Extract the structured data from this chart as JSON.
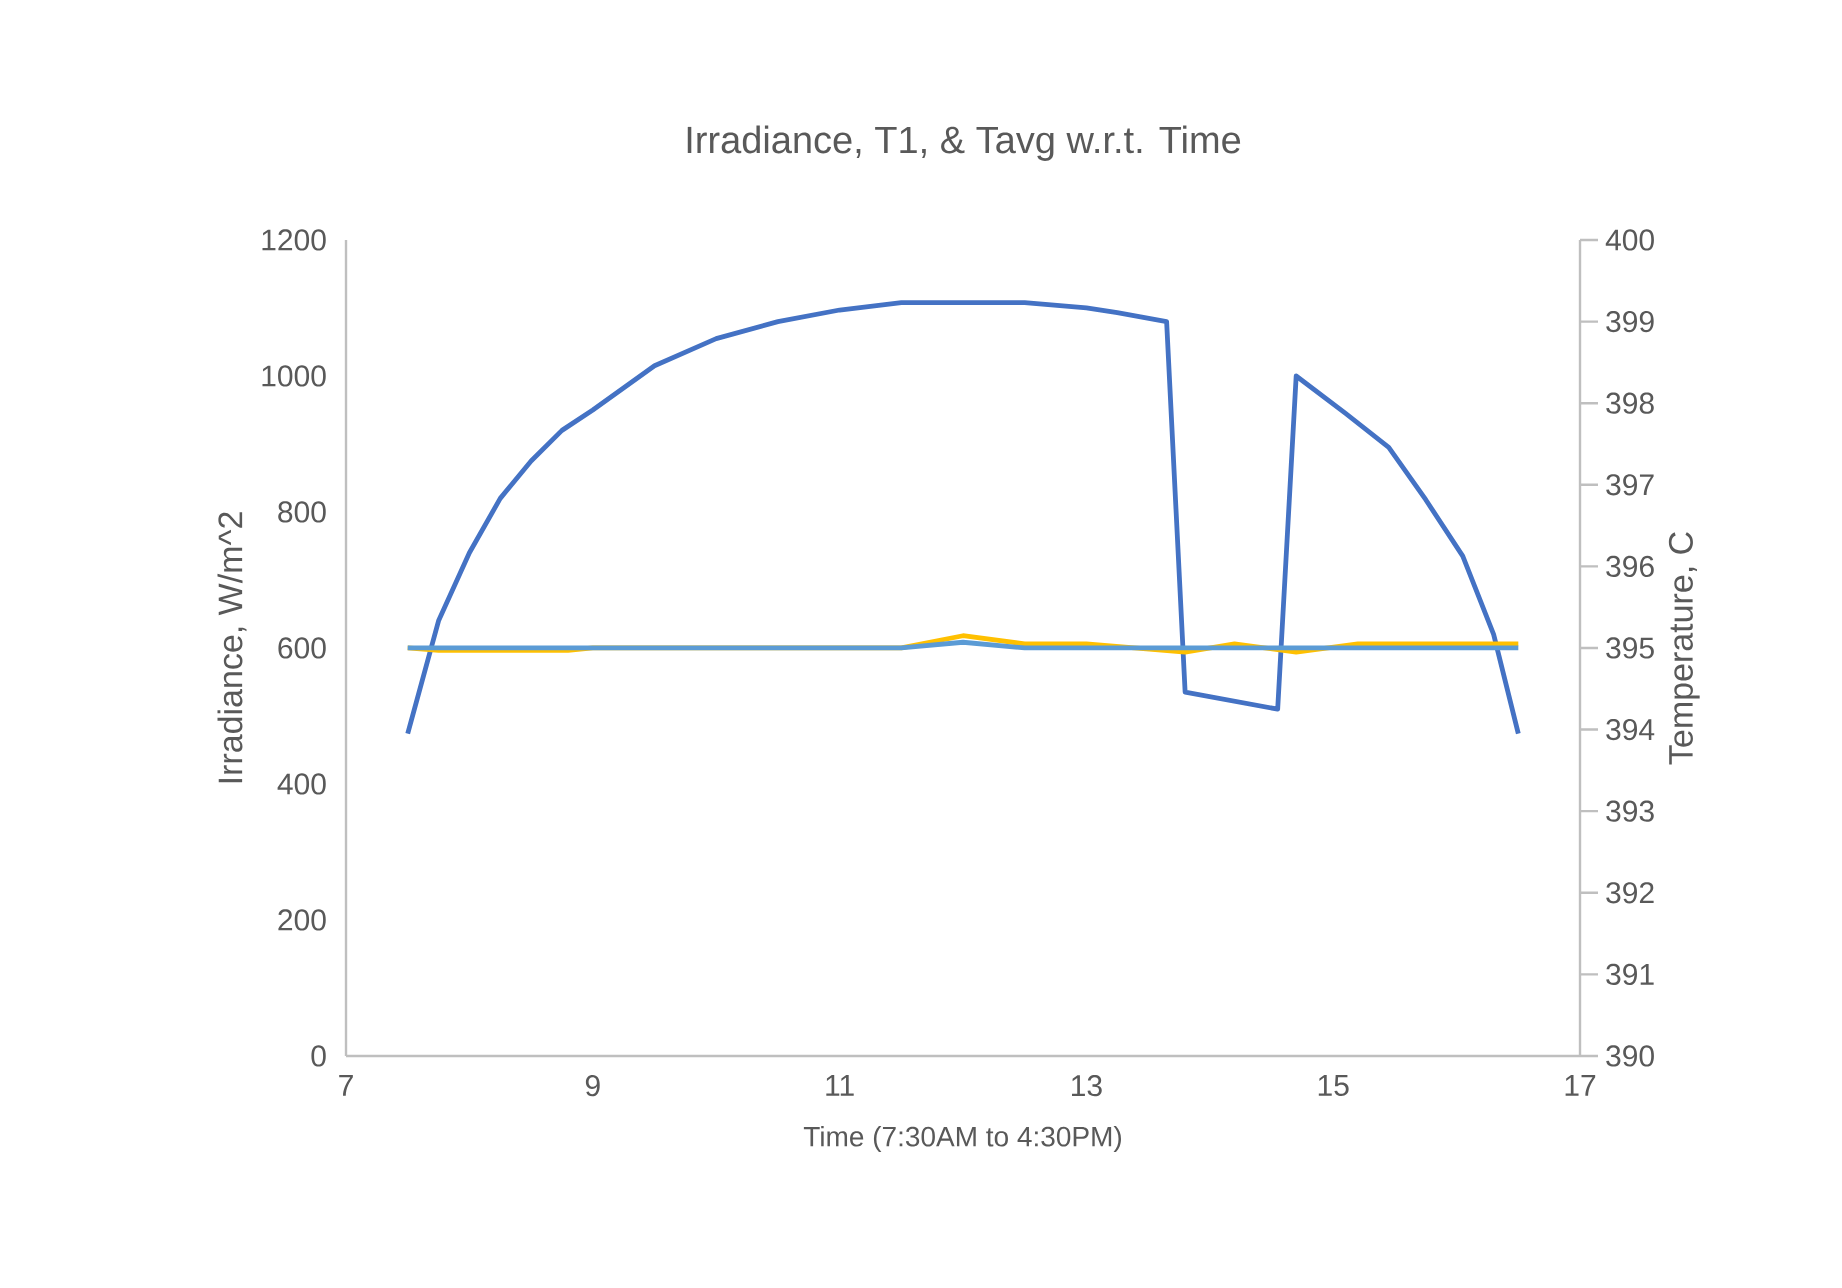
{
  "chart_data": {
    "type": "line",
    "title": "Irradiance, T1, & Tavg w.r.t. Time",
    "xlabel": "Time (7:30AM to 4:30PM)",
    "ylabel": "Irradiance, W/m^2",
    "y2label": "Temperature, C",
    "xlim": [
      7,
      17
    ],
    "xticks": [
      7,
      9,
      11,
      13,
      15,
      17
    ],
    "ylim": [
      0,
      1200
    ],
    "yticks": [
      0,
      200,
      400,
      600,
      800,
      1000,
      1200
    ],
    "y2lim": [
      390,
      400
    ],
    "y2ticks": [
      390,
      391,
      392,
      393,
      394,
      395,
      396,
      397,
      398,
      399,
      400
    ],
    "marker": "none",
    "series": [
      {
        "color": "#4472c4",
        "x": [
          7.5,
          7.75,
          8.0,
          8.25,
          8.5,
          8.75,
          9.0,
          9.5,
          10.0,
          10.5,
          11.0,
          11.5,
          12.0,
          12.5,
          13.0,
          13.25,
          13.65,
          13.8,
          14.55,
          14.7,
          15.1,
          15.45,
          15.75,
          16.05,
          16.3,
          16.5
        ],
        "values": [
          474,
          640,
          740,
          820,
          875,
          920,
          950,
          1015,
          1055,
          1080,
          1097,
          1108,
          1108,
          1108,
          1100,
          1093,
          1080,
          535,
          510,
          1000,
          945,
          895,
          818,
          735,
          620,
          474
        ]
      },
      {
        "color": "#ffc000",
        "axis": "y2",
        "x": [
          7.5,
          7.75,
          8.8,
          9.0,
          11.5,
          12.0,
          12.5,
          13.0,
          13.8,
          14.2,
          14.7,
          15.2,
          16.5
        ],
        "values": [
          395.0,
          394.97,
          394.97,
          395.0,
          395.0,
          395.15,
          395.05,
          395.05,
          394.95,
          395.05,
          394.95,
          395.05,
          395.05
        ]
      },
      {
        "color": "#5b9bd5",
        "axis": "y2",
        "x": [
          7.5,
          11.5,
          12.0,
          12.5,
          16.5
        ],
        "values": [
          395.0,
          395.0,
          395.07,
          395.0,
          395.0
        ]
      }
    ]
  }
}
